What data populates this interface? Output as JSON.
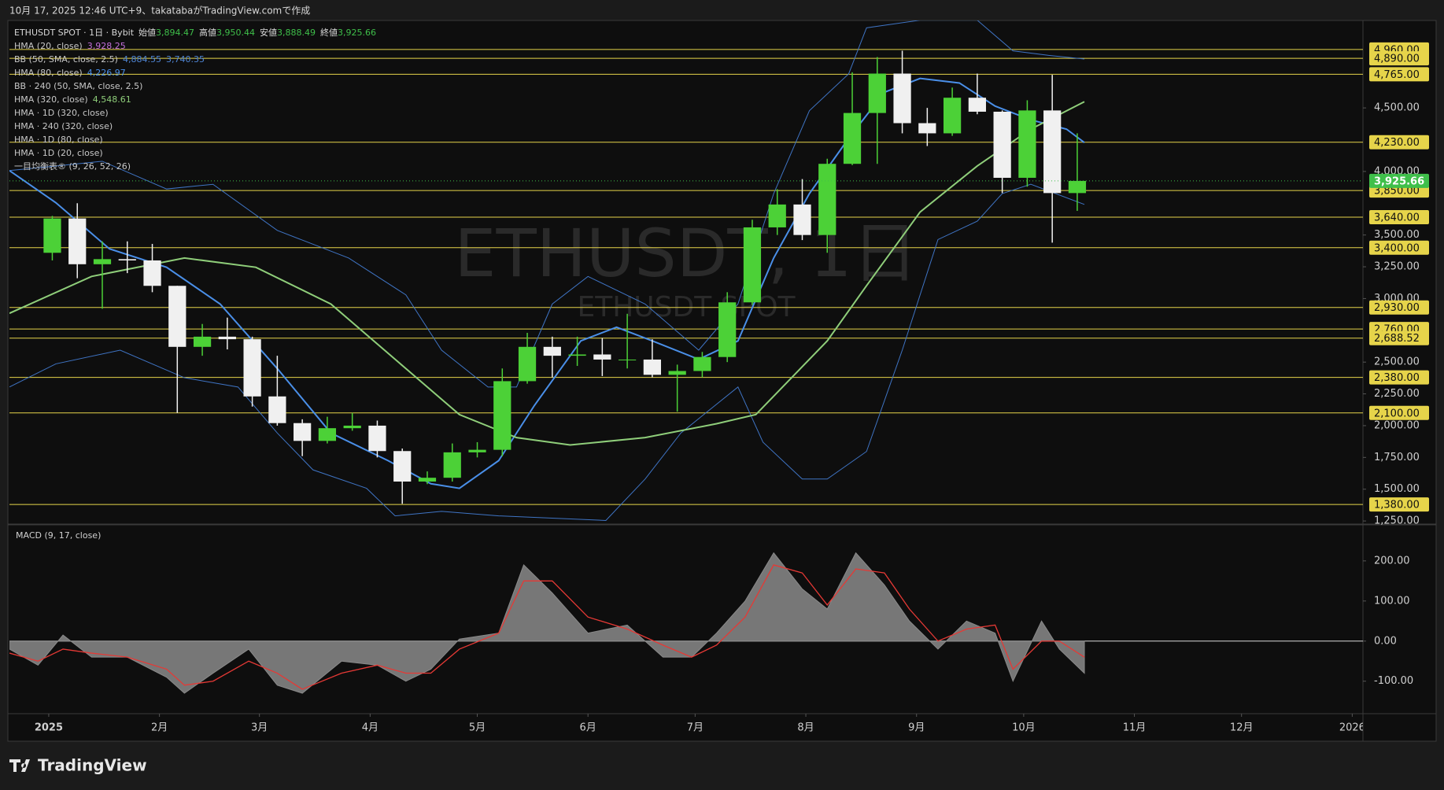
{
  "header": "10月 17, 2025 12:46 UTC+9、takatabaがTradingView.comで作成",
  "logo": "TradingView",
  "watermark": {
    "title": "ETHUSDT, 1日",
    "subtitle": "ETHUSDT SPOT"
  },
  "chart_data": [
    {
      "type": "candlestick",
      "title": "ETHUSDT SPOT · 1日 · Bybit",
      "ohlc": [
        {
          "label": "始値",
          "value": "3,894.47"
        },
        {
          "label": "高値",
          "value": "3,950.44"
        },
        {
          "label": "安値",
          "value": "3,888.49"
        },
        {
          "label": "終値",
          "value": "3,925.66"
        }
      ],
      "legend": [
        {
          "text": "HMA (20, close)",
          "values": [
            "3,928.25"
          ],
          "color": "#c36fdc"
        },
        {
          "text": "BB (50, SMA, close, 2.5)",
          "values": [
            "4,884.55",
            "3,740.35"
          ],
          "color": "#4f86d6"
        },
        {
          "text": "HMA (80, close)",
          "values": [
            "4,226.97"
          ],
          "color": "#4a8fe8"
        },
        {
          "text": "BB · 240 (50, SMA, close, 2.5)",
          "values": [],
          "color": "#c8c8c8"
        },
        {
          "text": "HMA (320, close)",
          "values": [
            "4,548.61"
          ],
          "color": "#8fce7a"
        },
        {
          "text": "HMA · 1D (320, close)",
          "values": [],
          "color": "#c8c8c8"
        },
        {
          "text": "HMA · 240 (320, close)",
          "values": [],
          "color": "#c8c8c8"
        },
        {
          "text": "HMA · 1D (80, close)",
          "values": [],
          "color": "#c8c8c8"
        },
        {
          "text": "HMA · 1D (20, close)",
          "values": [],
          "color": "#c8c8c8"
        },
        {
          "text": "一目均衡表® (9, 26, 52, 26)",
          "values": [],
          "color": "#c8c8c8"
        }
      ],
      "x": [
        1,
        8,
        15,
        22,
        29,
        36,
        43,
        50,
        57,
        64,
        71,
        78,
        85,
        92,
        99,
        106,
        113,
        120,
        127,
        134,
        141,
        148,
        155,
        162,
        169,
        176,
        183,
        190,
        197,
        204,
        211,
        218,
        225,
        232,
        239,
        246,
        253,
        260,
        267,
        274,
        281,
        288
      ],
      "open": [
        3360,
        3630,
        3270,
        3310,
        3300,
        3100,
        2620,
        2700,
        2680,
        2230,
        2020,
        1880,
        1980,
        2000,
        1800,
        1560,
        1590,
        1790,
        1810,
        2350,
        2620,
        2550,
        2560,
        2520,
        2520,
        2400,
        2430,
        2540,
        2970,
        3560,
        3740,
        3500,
        4060,
        4460,
        4770,
        4380,
        4300,
        4580,
        4470,
        3950,
        4480,
        3830
      ],
      "high": [
        3650,
        3750,
        3450,
        3450,
        3430,
        3100,
        2800,
        2850,
        2700,
        2550,
        2050,
        2070,
        2100,
        2040,
        1820,
        1640,
        1860,
        1870,
        2450,
        2730,
        2700,
        2700,
        2690,
        2880,
        2680,
        2480,
        2580,
        3050,
        3620,
        3860,
        3940,
        4100,
        4780,
        4900,
        4950,
        4500,
        4660,
        4770,
        4480,
        4560,
        4760,
        4300
      ],
      "low": [
        3300,
        3160,
        2920,
        3200,
        3050,
        2100,
        2550,
        2600,
        2150,
        2000,
        1760,
        1860,
        1960,
        1750,
        1385,
        1540,
        1560,
        1750,
        1760,
        2330,
        2380,
        2470,
        2390,
        2450,
        2380,
        2110,
        2380,
        2500,
        2950,
        3500,
        3460,
        3360,
        4050,
        4060,
        4300,
        4200,
        4280,
        4450,
        3830,
        3880,
        3440,
        3690
      ],
      "close": [
        3630,
        3270,
        3310,
        3300,
        3100,
        2620,
        2700,
        2680,
        2230,
        2020,
        1880,
        1980,
        2000,
        1800,
        1560,
        1590,
        1790,
        1810,
        2350,
        2620,
        2550,
        2560,
        2520,
        2520,
        2400,
        2430,
        2540,
        2970,
        3560,
        3740,
        3500,
        4060,
        4460,
        4770,
        4380,
        4300,
        4580,
        4470,
        3950,
        4480,
        3830,
        3925.66
      ],
      "up_color": "#4cd137",
      "down_color": "#f0f0f0",
      "overlays": [
        {
          "color": "#3f74c4",
          "width": 1,
          "x": [
            -11,
            2,
            15,
            33,
            46,
            64,
            84,
            100,
            110,
            123,
            131,
            141,
            151,
            167,
            182,
            193,
            203,
            213,
            224,
            229,
            244,
            260,
            270,
            280,
            290
          ],
          "values": [
            4007,
            4043,
            4080,
            3862,
            3899,
            3536,
            3319,
            3029,
            2594,
            2304,
            2304,
            2957,
            3174,
            2957,
            2594,
            2957,
            3826,
            4478,
            4768,
            5130,
            5190,
            5190,
            4949,
            4913,
            4884.55
          ]
        },
        {
          "color": "#3f74c4",
          "width": 1,
          "x": [
            -11,
            2,
            20,
            38,
            53,
            64,
            74,
            89,
            97,
            110,
            126,
            156,
            167,
            177,
            193,
            200,
            211,
            218,
            229,
            239,
            249,
            260,
            267,
            275,
            290
          ],
          "values": [
            2304,
            2486,
            2594,
            2377,
            2304,
            1942,
            1652,
            1507,
            1290,
            1326,
            1290,
            1254,
            1580,
            1942,
            2304,
            1870,
            1580,
            1580,
            1797,
            2594,
            3464,
            3609,
            3826,
            3899,
            3740.35
          ]
        },
        {
          "color": "#4a8fe8",
          "width": 2,
          "x": [
            -11,
            2,
            17,
            33,
            48,
            64,
            79,
            95,
            107,
            115,
            126,
            136,
            149,
            159,
            169,
            182,
            193,
            203,
            213,
            224,
            234,
            244,
            255,
            265,
            275,
            285,
            290
          ],
          "values": [
            4007,
            3754,
            3391,
            3246,
            2957,
            2449,
            1942,
            1725,
            1543,
            1507,
            1725,
            2159,
            2667,
            2775,
            2667,
            2522,
            2667,
            3319,
            3826,
            4261,
            4623,
            4732,
            4696,
            4514,
            4406,
            4333,
            4226.97
          ]
        },
        {
          "color": "#8fce7a",
          "width": 2,
          "x": [
            -11,
            12,
            38,
            58,
            79,
            100,
            115,
            131,
            146,
            167,
            187,
            198,
            208,
            218,
            229,
            244,
            260,
            275,
            290
          ],
          "values": [
            2884,
            3174,
            3319,
            3246,
            2957,
            2449,
            2087,
            1906,
            1848,
            1906,
            2015,
            2087,
            2377,
            2667,
            3101,
            3681,
            4043,
            4333,
            4548.61
          ]
        }
      ],
      "levels": [
        {
          "value": 4960,
          "label": "4,960.00"
        },
        {
          "value": 4890,
          "label": "4,890.00"
        },
        {
          "value": 4765,
          "label": "4,765.00"
        },
        {
          "value": 4230,
          "label": "4,230.00"
        },
        {
          "value": 3850,
          "label": "3,850.00"
        },
        {
          "value": 3640,
          "label": "3,640.00"
        },
        {
          "value": 3400,
          "label": "3,400.00"
        },
        {
          "value": 2930,
          "label": "2,930.00"
        },
        {
          "value": 2760,
          "label": "2,760.00"
        },
        {
          "value": 2688.52,
          "label": "2,688.52"
        },
        {
          "value": 2380,
          "label": "2,380.00"
        },
        {
          "value": 2100,
          "label": "2,100.00"
        },
        {
          "value": 1380,
          "label": "1,380.00"
        }
      ],
      "level_color": "#e6d44a",
      "last_price": {
        "value": 3925.66,
        "label": "3,925.66",
        "color": "#3fbf4a"
      },
      "xlim": [
        -11,
        368
      ],
      "ylim": [
        1232,
        5188
      ],
      "yticks": [
        {
          "value": 4500,
          "label": "4,500.00"
        },
        {
          "value": 4000,
          "label": "4,000.00"
        },
        {
          "value": 3500,
          "label": "3,500.00"
        },
        {
          "value": 3250,
          "label": "3,250.00"
        },
        {
          "value": 3000,
          "label": "3,000.00"
        },
        {
          "value": 2500,
          "label": "2,500.00"
        },
        {
          "value": 2250,
          "label": "2,250.00"
        },
        {
          "value": 2000,
          "label": "2,000.00"
        },
        {
          "value": 1750,
          "label": "1,750.00"
        },
        {
          "value": 1500,
          "label": "1,500.00"
        },
        {
          "value": 1250,
          "label": "1,250.00"
        }
      ],
      "xticks": [
        {
          "value": 0,
          "label": "2025"
        },
        {
          "value": 31,
          "label": "2月"
        },
        {
          "value": 59,
          "label": "3月"
        },
        {
          "value": 90,
          "label": "4月"
        },
        {
          "value": 120,
          "label": "5月"
        },
        {
          "value": 151,
          "label": "6月"
        },
        {
          "value": 181,
          "label": "7月"
        },
        {
          "value": 212,
          "label": "8月"
        },
        {
          "value": 243,
          "label": "9月"
        },
        {
          "value": 273,
          "label": "10月"
        },
        {
          "value": 304,
          "label": "11月"
        },
        {
          "value": 334,
          "label": "12月"
        },
        {
          "value": 365,
          "label": "2026"
        }
      ]
    },
    {
      "type": "line",
      "title": "MACD (9, 17, close)",
      "x": [
        -11,
        -3,
        4,
        12,
        22,
        33,
        38,
        46,
        56,
        64,
        71,
        82,
        92,
        100,
        107,
        115,
        126,
        133,
        141,
        151,
        162,
        172,
        180,
        187,
        195,
        203,
        211,
        218,
        226,
        234,
        241,
        249,
        257,
        265,
        270,
        278,
        283,
        290
      ],
      "series": [
        {
          "color": "#8a8a8a",
          "fill": true,
          "values": [
            -20,
            -60,
            15,
            -40,
            -40,
            -90,
            -130,
            -80,
            -20,
            -110,
            -130,
            -50,
            -60,
            -100,
            -70,
            5,
            20,
            190,
            120,
            20,
            40,
            -40,
            -40,
            20,
            100,
            220,
            130,
            80,
            220,
            140,
            50,
            -20,
            50,
            20,
            -100,
            50,
            -20,
            -80
          ]
        },
        {
          "color": "#e53935",
          "fill": false,
          "values": [
            -30,
            -50,
            -20,
            -30,
            -40,
            -70,
            -110,
            -100,
            -50,
            -80,
            -120,
            -80,
            -60,
            -80,
            -80,
            -20,
            20,
            150,
            150,
            60,
            30,
            -10,
            -40,
            -10,
            60,
            190,
            170,
            90,
            180,
            170,
            80,
            0,
            30,
            40,
            -70,
            0,
            0,
            -40
          ]
        }
      ],
      "xlim": [
        -11,
        368
      ],
      "ylim": [
        -181,
        288
      ],
      "yticks": [
        {
          "value": 200,
          "label": "200.00"
        },
        {
          "value": 100,
          "label": "100.00"
        },
        {
          "value": 0,
          "label": "0.00"
        },
        {
          "value": -100,
          "label": "-100.00"
        }
      ]
    }
  ]
}
